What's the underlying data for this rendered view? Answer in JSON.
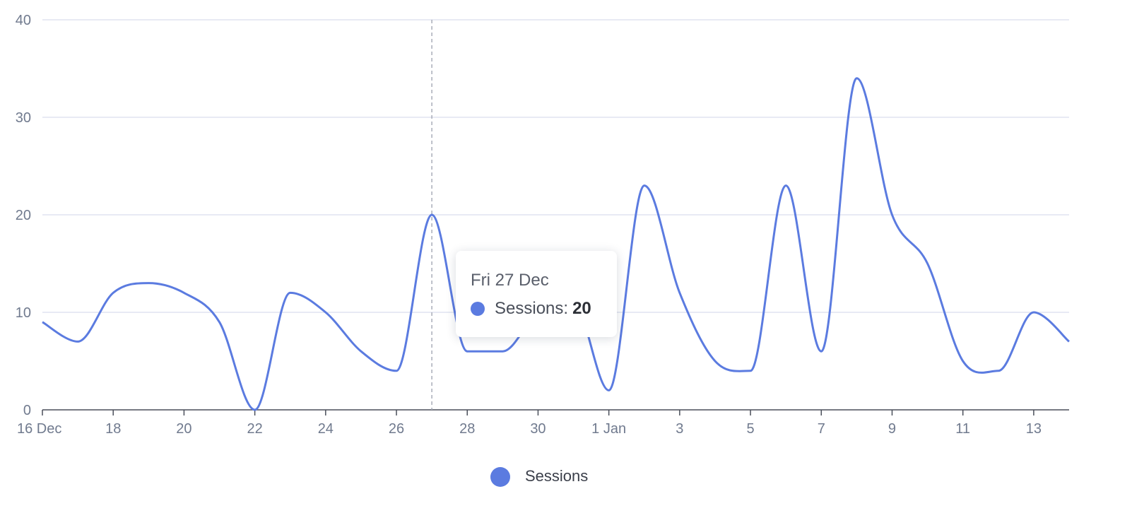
{
  "chart_data": {
    "type": "line",
    "x": [
      "16 Dec",
      "17 Dec",
      "18 Dec",
      "19 Dec",
      "20 Dec",
      "21 Dec",
      "22 Dec",
      "23 Dec",
      "24 Dec",
      "25 Dec",
      "26 Dec",
      "27 Dec",
      "28 Dec",
      "29 Dec",
      "30 Dec",
      "31 Dec",
      "1 Jan",
      "2 Jan",
      "3 Jan",
      "4 Jan",
      "5 Jan",
      "6 Jan",
      "7 Jan",
      "8 Jan",
      "9 Jan",
      "10 Jan",
      "11 Jan",
      "12 Jan",
      "13 Jan",
      "14 Jan"
    ],
    "x_tick_labels": [
      "16 Dec",
      "18",
      "20",
      "22",
      "24",
      "26",
      "28",
      "30",
      "1 Jan",
      "3",
      "5",
      "7",
      "9",
      "11",
      "13"
    ],
    "x_tick_indices": [
      0,
      2,
      4,
      6,
      8,
      10,
      12,
      14,
      16,
      18,
      20,
      22,
      24,
      26,
      28
    ],
    "series": [
      {
        "name": "Sessions",
        "color": "#5b7be0",
        "values": [
          9,
          7,
          12,
          13,
          12,
          9,
          0,
          12,
          10,
          6,
          4,
          20,
          6,
          6,
          10,
          11,
          2,
          23,
          12,
          5,
          4,
          23,
          6,
          34,
          20,
          15,
          5,
          4,
          10,
          7
        ]
      }
    ],
    "ylim": [
      0,
      40
    ],
    "y_ticks": [
      0,
      10,
      20,
      30,
      40
    ],
    "grid": true,
    "legend_position": "bottom-center",
    "title": "",
    "xlabel": "",
    "ylabel": ""
  },
  "tooltip": {
    "date": "Fri 27 Dec",
    "series_label": "Sessions:",
    "value": "20",
    "hover_index": 11
  },
  "legend": {
    "label": "Sessions"
  },
  "colors": {
    "line": "#5b7be0",
    "grid": "#e0e4f0",
    "axis": "#4a4f5a",
    "text": "#707a8e"
  }
}
